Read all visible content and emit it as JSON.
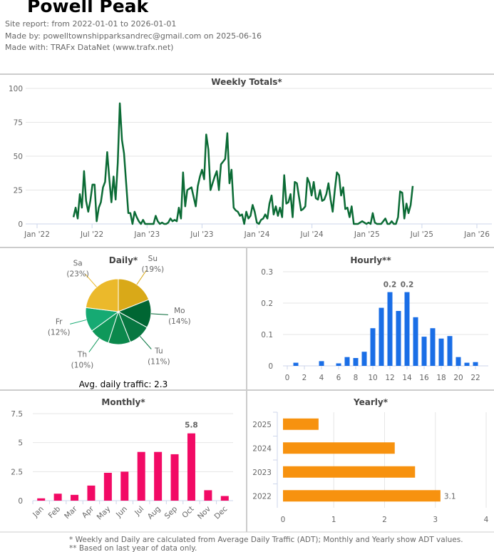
{
  "header": {
    "title": "Powell Peak",
    "site_report": "Site report: from 2022-01-01 to 2026-01-01",
    "made_by": "Made by: powelltownshipparksandrec@gmail.com on 2025-06-16",
    "made_with": "Made with: TRAFx DataNet (www.trafx.net)"
  },
  "footer": {
    "note1": "* Weekly and Daily are calculated from Average Daily Traffic (ADT); Monthly and Yearly show ADT values.",
    "note2": "** Based on last year of data only."
  },
  "chart_data": [
    {
      "type": "line",
      "title": "Weekly Totals*",
      "color": "#0b6b35",
      "ylim": [
        0,
        100
      ],
      "yticks": [
        "0",
        "25",
        "50",
        "75",
        "100"
      ],
      "xticks": [
        "Jan '22",
        "Jul '22",
        "Jan '23",
        "Jul '23",
        "Jan '24",
        "Jul '24",
        "Jan '25",
        "Jul '25",
        "Jan '26"
      ],
      "x_range": [
        "2022-01-01",
        "2026-01-01"
      ],
      "x_start": "2022-05-02",
      "x_step": "1 week",
      "grid": true,
      "values": [
        5,
        12,
        4,
        22,
        12,
        39,
        17,
        9,
        17,
        29,
        29,
        2,
        12,
        16,
        27,
        31,
        53,
        33,
        16,
        35,
        18,
        45,
        89,
        62,
        52,
        30,
        8,
        8,
        0,
        9,
        5,
        2,
        0,
        3,
        0,
        0,
        0,
        0,
        0,
        6,
        2,
        0,
        1,
        0,
        0,
        1,
        4,
        2,
        3,
        2,
        12,
        4,
        38,
        13,
        25,
        26,
        27,
        20,
        13,
        28,
        35,
        40,
        33,
        66,
        55,
        25,
        30,
        35,
        39,
        25,
        44,
        46,
        48,
        67,
        30,
        40,
        12,
        10,
        9,
        6,
        7,
        0,
        9,
        4,
        6,
        14,
        9,
        1,
        0,
        3,
        4,
        7,
        4,
        15,
        21,
        7,
        13,
        6,
        12,
        5,
        36,
        15,
        16,
        22,
        5,
        31,
        30,
        20,
        10,
        11,
        13,
        34,
        30,
        21,
        31,
        19,
        18,
        25,
        17,
        18,
        22,
        30,
        18,
        9,
        25,
        38,
        36,
        21,
        27,
        11,
        12,
        5,
        13,
        0,
        0,
        0,
        1,
        2,
        1,
        0,
        1,
        0,
        8,
        1,
        0,
        0,
        0,
        2,
        4,
        0,
        0,
        2,
        0,
        0,
        5,
        24,
        23,
        4,
        15,
        8,
        14,
        28
      ]
    },
    {
      "type": "pie",
      "title": "Daily*",
      "slices": [
        {
          "label": "Su",
          "pct": "(19%)",
          "value": 19,
          "color": "#d9a918"
        },
        {
          "label": "Mo",
          "pct": "(14%)",
          "value": 14,
          "color": "#006633"
        },
        {
          "label": "Tu",
          "pct": "(11%)",
          "value": 11,
          "color": "#077741"
        },
        {
          "label": "",
          "pct": "",
          "value": 11,
          "color": "#0b884c"
        },
        {
          "label": "Th",
          "pct": "(10%)",
          "value": 10,
          "color": "#0f985a"
        },
        {
          "label": "Fr",
          "pct": "(12%)",
          "value": 12,
          "color": "#16aa73"
        },
        {
          "label": "Sa",
          "pct": "(23%)",
          "value": 23,
          "color": "#ebb92b"
        }
      ],
      "annotation": "Avg. daily traffic: 2.3"
    },
    {
      "type": "bar",
      "title": "Hourly**",
      "color": "#1a6ee6",
      "ylim": [
        0,
        0.3
      ],
      "yticks": [
        "0",
        "0.1",
        "0.2",
        "0.3"
      ],
      "xticks": [
        "0",
        "2",
        "4",
        "6",
        "8",
        "10",
        "12",
        "14",
        "16",
        "18",
        "20",
        "22"
      ],
      "categories": [
        0,
        1,
        2,
        3,
        4,
        5,
        6,
        7,
        8,
        9,
        10,
        11,
        12,
        13,
        14,
        15,
        16,
        17,
        18,
        19,
        20,
        21,
        22,
        23
      ],
      "values": [
        0,
        0.01,
        0,
        0,
        0.015,
        0,
        0.008,
        0.028,
        0.025,
        0.045,
        0.12,
        0.185,
        0.235,
        0.175,
        0.235,
        0.155,
        0.093,
        0.12,
        0.087,
        0.095,
        0.028,
        0.01,
        0.012,
        0
      ],
      "data_labels": [
        {
          "x": 12,
          "text": "0.2"
        },
        {
          "x": 14,
          "text": "0.2"
        }
      ]
    },
    {
      "type": "bar",
      "title": "Monthly*",
      "color": "#f20a65",
      "ylim": [
        0,
        7.5
      ],
      "yticks": [
        "0",
        "2.5",
        "5",
        "7.5"
      ],
      "categories": [
        "Jan",
        "Feb",
        "Mar",
        "Apr",
        "May",
        "Jun",
        "Jul",
        "Aug",
        "Sep",
        "Oct",
        "Nov",
        "Dec"
      ],
      "values": [
        0.2,
        0.6,
        0.5,
        1.3,
        2.4,
        2.5,
        4.2,
        4.2,
        4.0,
        5.8,
        0.9,
        0.4
      ],
      "data_labels": [
        {
          "index": 9,
          "text": "5.8"
        }
      ]
    },
    {
      "type": "bar",
      "orientation": "horizontal",
      "title": "Yearly*",
      "color": "#f7920f",
      "xlim": [
        0,
        4
      ],
      "xticks": [
        "0",
        "1",
        "2",
        "3",
        "4"
      ],
      "categories": [
        "2025",
        "2024",
        "2023",
        "2022"
      ],
      "values": [
        0.7,
        2.2,
        2.6,
        3.1
      ],
      "data_labels": [
        {
          "index": 3,
          "text": "3.1"
        }
      ]
    }
  ]
}
